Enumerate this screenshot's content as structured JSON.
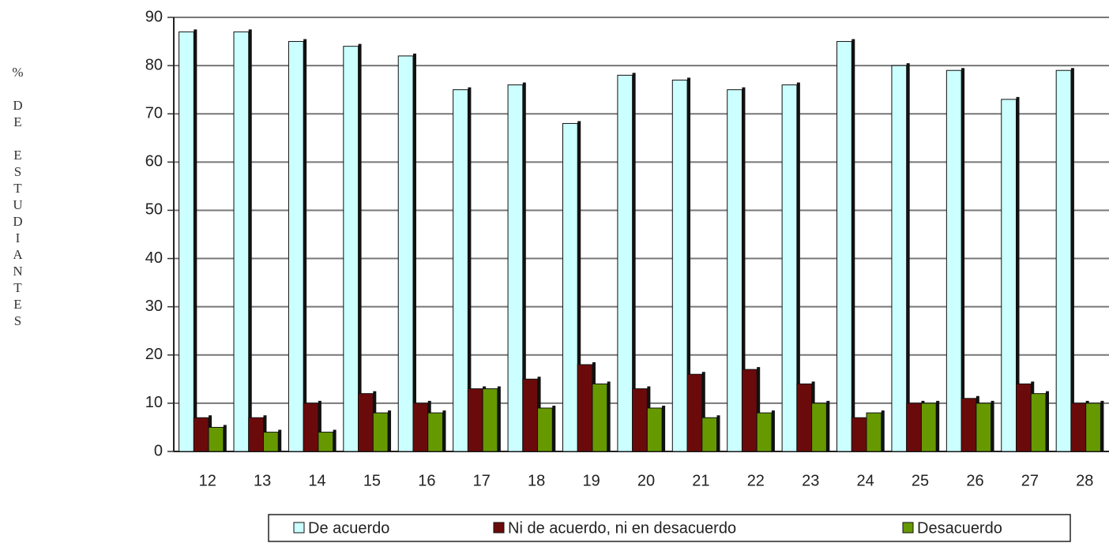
{
  "chart_data": {
    "type": "bar",
    "y_label": "% DE ESTUDIANTES",
    "categories": [
      "12",
      "13",
      "14",
      "15",
      "16",
      "17",
      "18",
      "19",
      "20",
      "21",
      "22",
      "23",
      "24",
      "25",
      "26",
      "27",
      "28"
    ],
    "series": [
      {
        "name": "De acuerdo",
        "color": "#ccffff",
        "values": [
          87,
          87,
          85,
          84,
          82,
          75,
          76,
          68,
          78,
          77,
          75,
          76,
          85,
          80,
          79,
          73,
          79
        ]
      },
      {
        "name": "Ni de acuerdo, ni en desacuerdo",
        "color": "#6b0a0a",
        "values": [
          7,
          7,
          10,
          12,
          10,
          13,
          15,
          18,
          13,
          16,
          17,
          14,
          7,
          10,
          11,
          14,
          10
        ]
      },
      {
        "name": "Desacuerdo",
        "color": "#669900",
        "values": [
          5,
          4,
          4,
          8,
          8,
          13,
          9,
          14,
          9,
          7,
          8,
          10,
          8,
          10,
          10,
          12,
          10
        ]
      }
    ],
    "ylim": [
      0,
      90
    ],
    "yticks": [
      0,
      10,
      20,
      30,
      40,
      50,
      60,
      70,
      80,
      90
    ],
    "grid": true,
    "legend": "bottom"
  }
}
